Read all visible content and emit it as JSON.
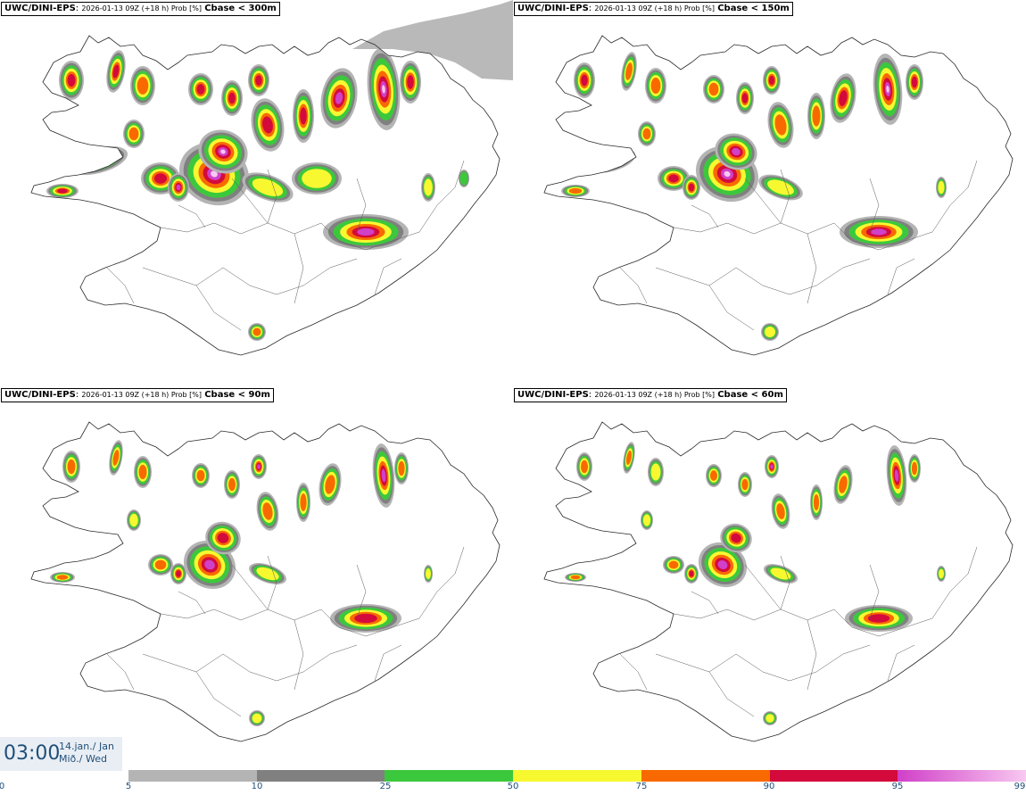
{
  "panels": [
    {
      "model": "UWC/DINI-EPS",
      "meta": "2026-01-13 09Z (+18 h) Prob [%]",
      "variable": "Cbase < 300m"
    },
    {
      "model": "UWC/DINI-EPS",
      "meta": "2026-01-13 09Z (+18 h) Prob [%]",
      "variable": "Cbase < 150m"
    },
    {
      "model": "UWC/DINI-EPS",
      "meta": "2026-01-13 09Z (+18 h) Prob [%]",
      "variable": "Cbase < 90m"
    },
    {
      "model": "UWC/DINI-EPS",
      "meta": "2026-01-13 09Z (+18 h) Prob [%]",
      "variable": "Cbase < 60m"
    }
  ],
  "valid_time": {
    "time": "03:00",
    "date_line": "14.jan./ Jan",
    "day_line": "Mið./ Wed"
  },
  "legend": {
    "ticks": [
      "0",
      "5",
      "10",
      "25",
      "50",
      "75",
      "90",
      "95",
      "99"
    ],
    "colors": [
      "#b4b4b4",
      "#808080",
      "#3cc83c",
      "#f8f830",
      "#f86a00",
      "#d40a3c",
      "#d040c8"
    ],
    "last_color": "#f8c8f0"
  }
}
